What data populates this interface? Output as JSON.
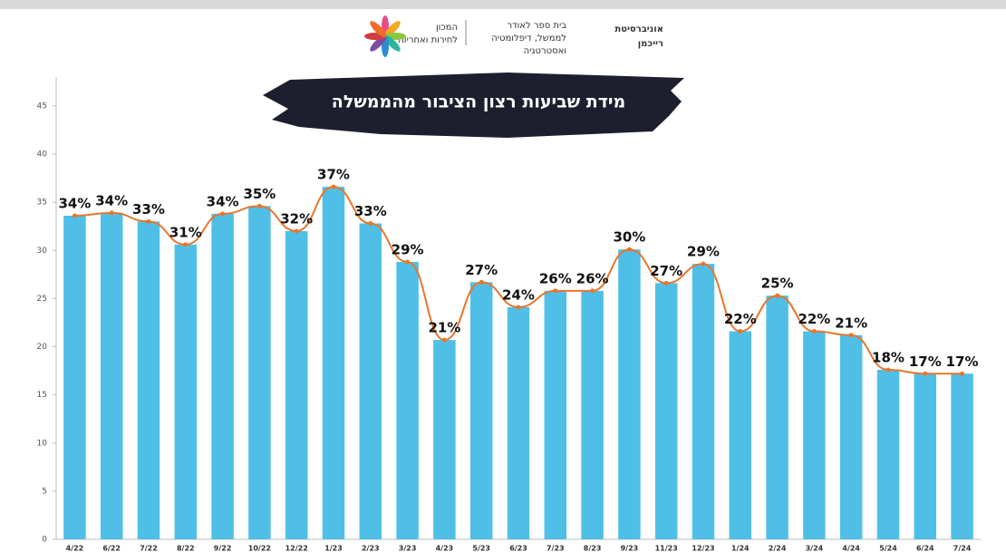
{
  "header": {
    "university": [
      "אוניברסיטת",
      "רייכמן"
    ],
    "school": [
      "בית ספר לאודר",
      "לממשל, דיפלומטיה",
      "ואסטרטגיה"
    ],
    "institute": [
      "המכון",
      "לחירות ואחריות"
    ]
  },
  "chart_data": {
    "type": "bar",
    "title": "מידת שביעות רצון הציבור מהממשלה",
    "categories": [
      "4/22",
      "6/22",
      "7/22",
      "8/22",
      "9/22",
      "10/22",
      "12/22",
      "1/23",
      "2/23",
      "3/23",
      "4/23",
      "5/23",
      "6/23",
      "7/23",
      "8/23",
      "9/23",
      "11/23",
      "12/23",
      "1/24",
      "2/24",
      "3/24",
      "4/24",
      "5/24",
      "6/24",
      "7/24"
    ],
    "values": [
      33.6,
      33.9,
      33.0,
      30.6,
      33.8,
      34.6,
      32.0,
      36.6,
      32.8,
      28.8,
      20.7,
      26.7,
      24.1,
      25.8,
      25.8,
      30.1,
      26.6,
      28.6,
      21.6,
      25.3,
      21.6,
      21.2,
      17.6,
      17.2,
      17.2
    ],
    "value_labels": [
      "34%",
      "34%",
      "33%",
      "31%",
      "34%",
      "35%",
      "32%",
      "37%",
      "33%",
      "29%",
      "21%",
      "27%",
      "24%",
      "26%",
      "26%",
      "30%",
      "27%",
      "29%",
      "22%",
      "25%",
      "22%",
      "21%",
      "18%",
      "17%",
      "17%"
    ],
    "color": "#4fbfe8",
    "line_color": "#e8762c",
    "ylim": [
      0,
      48
    ],
    "yticks": [
      0,
      5,
      10,
      15,
      20,
      25,
      30,
      35,
      40,
      45
    ]
  }
}
